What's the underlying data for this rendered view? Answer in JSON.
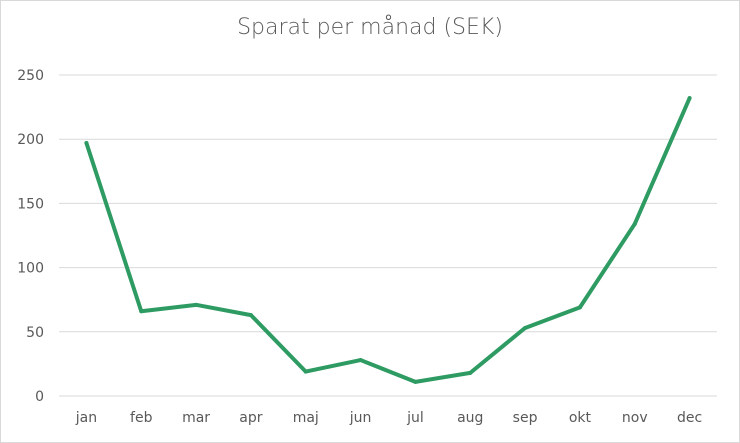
{
  "chart_data": {
    "type": "line",
    "title": "Sparat per månad (SEK)",
    "xlabel": "",
    "ylabel": "",
    "categories": [
      "jan",
      "feb",
      "mar",
      "apr",
      "maj",
      "jun",
      "jul",
      "aug",
      "sep",
      "okt",
      "nov",
      "dec"
    ],
    "series": [
      {
        "values": [
          197,
          66,
          71,
          63,
          19,
          28,
          11,
          18,
          53,
          69,
          134,
          232
        ]
      }
    ],
    "ylim": [
      0,
      250
    ],
    "yticks": [
      0,
      50,
      100,
      150,
      200,
      250
    ],
    "grid": true,
    "legend": "none",
    "colors": {
      "line": "#2e9b63",
      "grid": "#d9d9d9",
      "text": "#595959"
    }
  }
}
